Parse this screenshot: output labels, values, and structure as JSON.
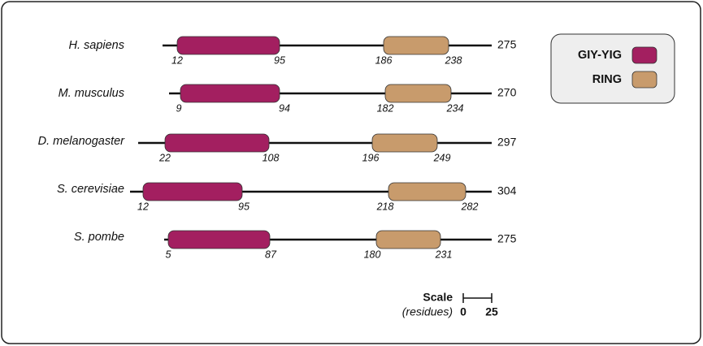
{
  "proteins": [
    {
      "species": "H. sapiens",
      "length": 275,
      "domains": [
        {
          "start": 12,
          "end": 95
        },
        {
          "start": 186,
          "end": 238
        }
      ]
    },
    {
      "species": "M. musculus",
      "length": 270,
      "domains": [
        {
          "start": 9,
          "end": 94
        },
        {
          "start": 182,
          "end": 234
        }
      ]
    },
    {
      "species": "D. melanogaster",
      "length": 297,
      "domains": [
        {
          "start": 22,
          "end": 108
        },
        {
          "start": 196,
          "end": 249
        }
      ]
    },
    {
      "species": "S. cerevisiae",
      "length": 304,
      "domains": [
        {
          "start": 12,
          "end": 95
        },
        {
          "start": 218,
          "end": 282
        }
      ]
    },
    {
      "species": "S. pombe",
      "length": 275,
      "domains": [
        {
          "start": 5,
          "end": 87
        },
        {
          "start": 180,
          "end": 231
        }
      ]
    }
  ],
  "legend": [
    {
      "label": "GIY-YIG",
      "color": "#a31f60"
    },
    {
      "label": "RING",
      "color": "#c89b6c"
    }
  ],
  "scale": {
    "title": "Scale",
    "unit": "(residues)",
    "ticks": [
      0,
      25
    ]
  }
}
